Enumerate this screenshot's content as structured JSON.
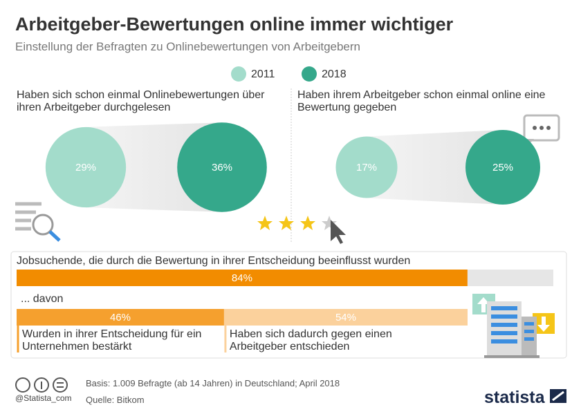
{
  "title": "Arbeitgeber-Bewertungen online immer wichtiger",
  "subtitle": "Einstellung der Befragten zu Onlinebewertungen von Arbeitgebern",
  "chart_data": [
    {
      "type": "bubble-pair",
      "categories": [
        "Haben sich schon einmal Onlinebewertungen über ihren Arbeitgeber durchgelesen",
        "Haben ihrem Arbeitgeber schon einmal online eine Bewertung gegeben"
      ],
      "series": [
        {
          "name": "2011",
          "color": "#a3dccb",
          "values": [
            29,
            17
          ],
          "value_labels": [
            "29%",
            "17%"
          ]
        },
        {
          "name": "2018",
          "color": "#35a88b",
          "values": [
            36,
            25
          ],
          "value_labels": [
            "36%",
            "25%"
          ]
        }
      ]
    },
    {
      "type": "hbar",
      "title": "Jobsuchende, die durch die Bewertung in ihrer Entscheidung beeinflusst wurden",
      "values": [
        84
      ],
      "value_labels": [
        "84%"
      ],
      "color": "#f28c00",
      "xlim": [
        0,
        100
      ]
    },
    {
      "type": "stacked-hbar",
      "title": "... davon",
      "categories": [
        "Wurden in ihrer Entscheidung für ein Unternehmen bestärkt",
        "Haben sich dadurch gegen einen Arbeitgeber entschieden"
      ],
      "values": [
        46,
        54
      ],
      "value_labels": [
        "46%",
        "54%"
      ],
      "colors": [
        "#f5a02e",
        "#fbd19c"
      ],
      "xlim": [
        0,
        100
      ]
    }
  ],
  "footer": {
    "basis": "Basis: 1.009 Befragte (ab 14 Jahren) in Deutschland; April 2018",
    "source": "Quelle: Bitkom",
    "handle": "@Statista_com",
    "brand": "statista"
  }
}
